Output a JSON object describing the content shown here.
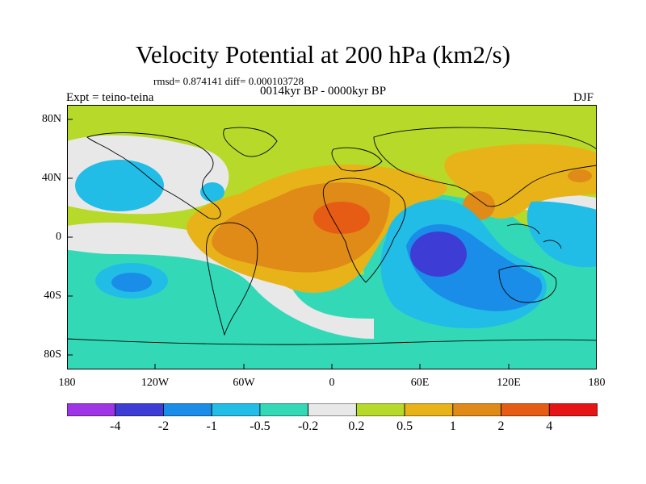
{
  "figure": {
    "title": "Velocity Potential at 200 hPa (km2/s)",
    "stats": "rmsd= 0.874141 diff= 0.000103728",
    "period": "0014kyr BP - 0000kyr BP",
    "experiment": "Expt = teino-teina",
    "season": "DJF"
  },
  "axes": {
    "y_ticks": [
      "80N",
      "40N",
      "0",
      "40S",
      "80S"
    ],
    "x_ticks": [
      "180",
      "120W",
      "60W",
      "0",
      "60E",
      "120E",
      "180"
    ]
  },
  "colorbar": {
    "labels": [
      "-4",
      "-2",
      "-1",
      "-0.5",
      "-0.2",
      "0.2",
      "0.5",
      "1",
      "2",
      "4"
    ],
    "colors": [
      "#9f33e6",
      "#3d3dd6",
      "#1a8de8",
      "#22bde6",
      "#33d9b7",
      "#e8e8e8",
      "#b7d92a",
      "#e8b319",
      "#e08a18",
      "#e65c14",
      "#e61414"
    ]
  },
  "map_colors": {
    "land_outline": "#000000",
    "background": "#b7d92a"
  }
}
